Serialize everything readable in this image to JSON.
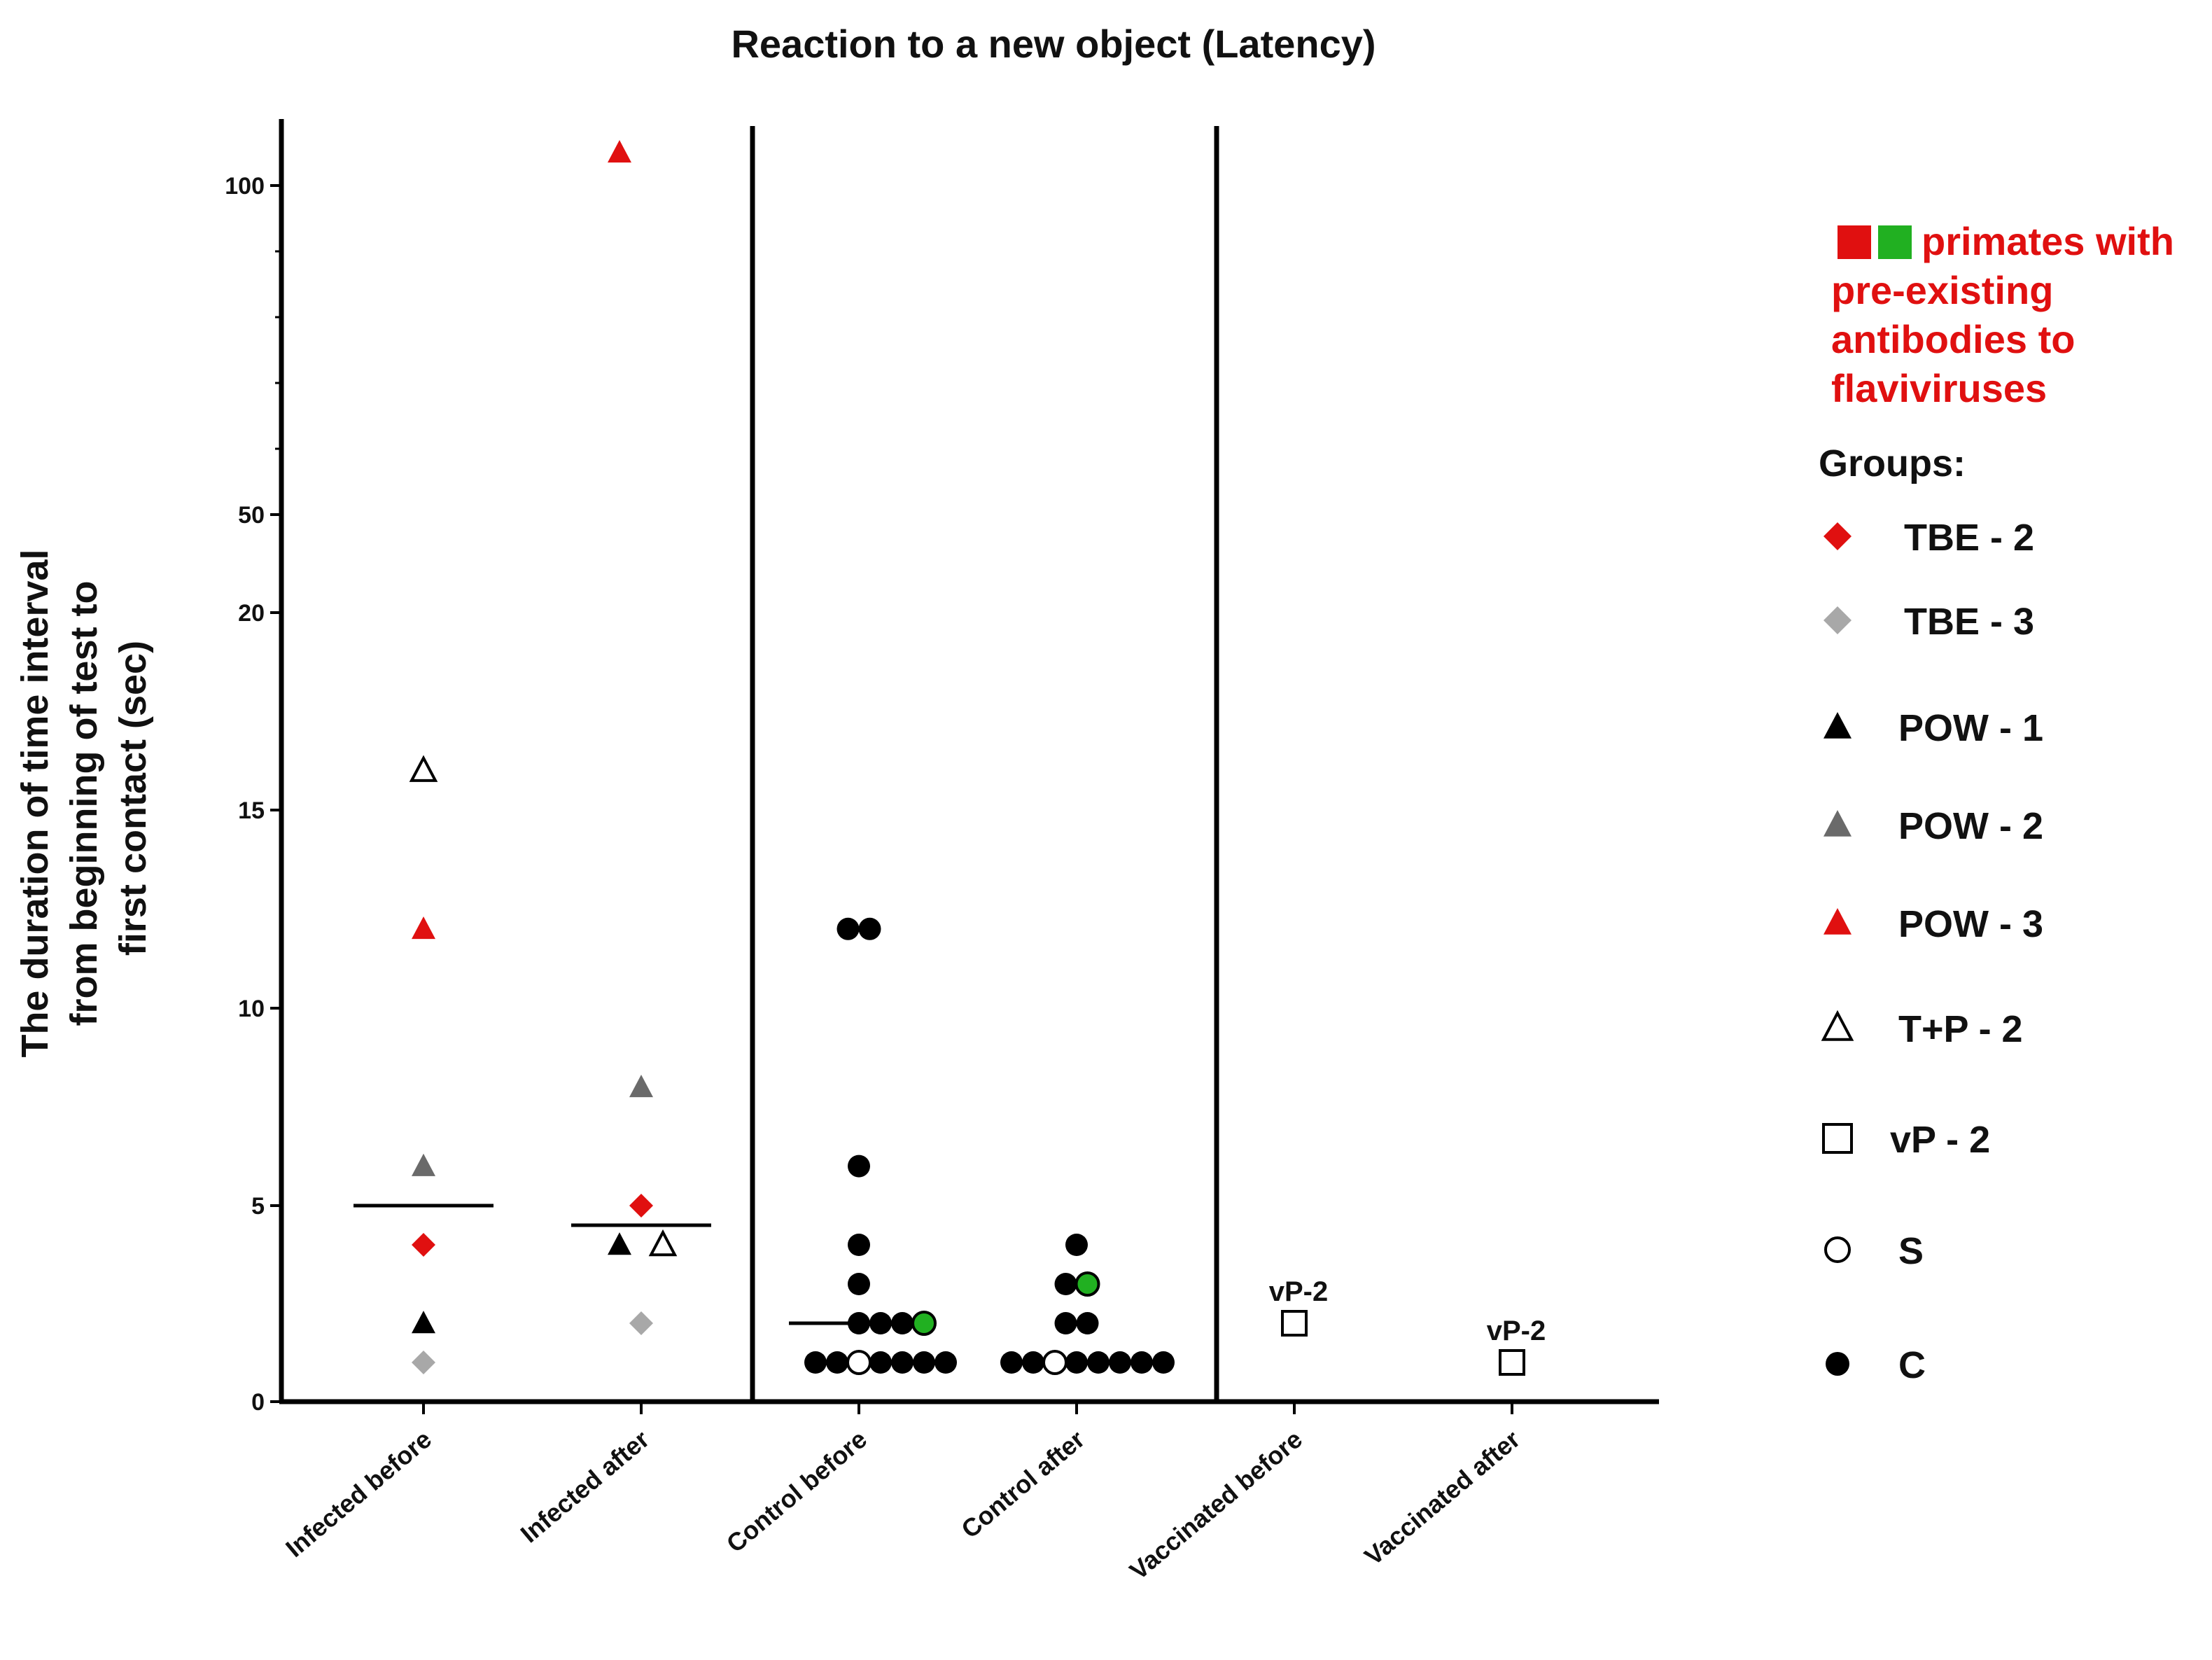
{
  "chart_data": {
    "type": "scatter",
    "title": "Reaction to a new object (Latency)",
    "ylabel_lines": [
      "The duration of time interval",
      "from beginning of test to",
      "first contact (sec)"
    ],
    "xlabel": "",
    "y_axis": {
      "scale": "segmented",
      "ticks": [
        {
          "value": 0,
          "label": "0"
        },
        {
          "value": 5,
          "label": "5"
        },
        {
          "value": 10,
          "label": "10"
        },
        {
          "value": 15,
          "label": "15"
        },
        {
          "value": 20,
          "label": "20"
        },
        {
          "value": 50,
          "label": "50"
        },
        {
          "value": 100,
          "label": "100"
        }
      ],
      "max": 107
    },
    "categories": [
      "Infected before",
      "Infected after",
      "Control before",
      "Control after",
      "Vaccinated before",
      "Vaccinated after"
    ],
    "separators_after": [
      1,
      3
    ],
    "medians": [
      {
        "category": 0,
        "value": 5
      },
      {
        "category": 1,
        "value": 4.5
      },
      {
        "category": 2,
        "value": 2
      },
      {
        "category": 3,
        "value": 1
      }
    ],
    "points": [
      {
        "category": 0,
        "group": "TBE - 3",
        "value": 1,
        "offset": 0
      },
      {
        "category": 0,
        "group": "POW - 1",
        "value": 2,
        "offset": 0
      },
      {
        "category": 0,
        "group": "TBE - 2",
        "value": 4,
        "offset": 0
      },
      {
        "category": 0,
        "group": "POW - 2",
        "value": 6,
        "offset": 0
      },
      {
        "category": 0,
        "group": "POW - 3",
        "value": 12,
        "offset": 0
      },
      {
        "category": 0,
        "group": "T+P - 2",
        "value": 16,
        "offset": 0
      },
      {
        "category": 1,
        "group": "TBE - 3",
        "value": 2,
        "offset": 0
      },
      {
        "category": 1,
        "group": "POW - 1",
        "value": 4,
        "offset": -1
      },
      {
        "category": 1,
        "group": "T+P - 2",
        "value": 4,
        "offset": 1
      },
      {
        "category": 1,
        "group": "TBE - 2",
        "value": 5,
        "offset": 0
      },
      {
        "category": 1,
        "group": "POW - 2",
        "value": 8,
        "offset": 0
      },
      {
        "category": 1,
        "group": "POW - 3",
        "value": 105,
        "offset": -1
      },
      {
        "category": 2,
        "group": "C",
        "value": 1,
        "offset": -2
      },
      {
        "category": 2,
        "group": "C",
        "value": 1,
        "offset": -1
      },
      {
        "category": 2,
        "group": "S",
        "value": 1,
        "offset": 0
      },
      {
        "category": 2,
        "group": "C",
        "value": 1,
        "offset": 1
      },
      {
        "category": 2,
        "group": "C",
        "value": 1,
        "offset": 2
      },
      {
        "category": 2,
        "group": "C",
        "value": 1,
        "offset": 3
      },
      {
        "category": 2,
        "group": "C",
        "value": 1,
        "offset": 4
      },
      {
        "category": 2,
        "group": "C",
        "value": 2,
        "offset": 0
      },
      {
        "category": 2,
        "group": "C",
        "value": 2,
        "offset": 1
      },
      {
        "category": 2,
        "group": "C",
        "value": 2,
        "offset": 2
      },
      {
        "category": 2,
        "group": "C",
        "value": 2,
        "offset": 3,
        "antibodies": "green"
      },
      {
        "category": 2,
        "group": "C",
        "value": 3,
        "offset": 0
      },
      {
        "category": 2,
        "group": "C",
        "value": 4,
        "offset": 0
      },
      {
        "category": 2,
        "group": "C",
        "value": 6,
        "offset": 0
      },
      {
        "category": 2,
        "group": "C",
        "value": 12,
        "offset": -0.5
      },
      {
        "category": 2,
        "group": "C",
        "value": 12,
        "offset": 0.5
      },
      {
        "category": 3,
        "group": "C",
        "value": 1,
        "offset": -3
      },
      {
        "category": 3,
        "group": "C",
        "value": 1,
        "offset": -2
      },
      {
        "category": 3,
        "group": "S",
        "value": 1,
        "offset": -1
      },
      {
        "category": 3,
        "group": "C",
        "value": 1,
        "offset": 0
      },
      {
        "category": 3,
        "group": "C",
        "value": 1,
        "offset": 1
      },
      {
        "category": 3,
        "group": "C",
        "value": 1,
        "offset": 2
      },
      {
        "category": 3,
        "group": "C",
        "value": 1,
        "offset": 3
      },
      {
        "category": 3,
        "group": "C",
        "value": 1,
        "offset": 4
      },
      {
        "category": 3,
        "group": "C",
        "value": 2,
        "offset": -0.5
      },
      {
        "category": 3,
        "group": "C",
        "value": 2,
        "offset": 0.5
      },
      {
        "category": 3,
        "group": "C",
        "value": 3,
        "offset": -0.5
      },
      {
        "category": 3,
        "group": "C",
        "value": 3,
        "offset": 0.5,
        "antibodies": "green"
      },
      {
        "category": 3,
        "group": "C",
        "value": 4,
        "offset": 0
      },
      {
        "category": 4,
        "group": "vP - 2",
        "value": 2,
        "offset": 0,
        "label": "vP-2"
      },
      {
        "category": 5,
        "group": "vP - 2",
        "value": 1,
        "offset": 0,
        "label": "vP-2"
      }
    ],
    "antibody_note": [
      "primates with",
      "pre-existing",
      "antibodies to",
      "flaviviruses"
    ],
    "legend_title": "Groups:",
    "legend": [
      {
        "label": "TBE - 2",
        "shape": "diamond",
        "color": "#e01010"
      },
      {
        "label": "TBE - 3",
        "shape": "diamond",
        "color": "#a8a8a8"
      },
      {
        "label": "POW - 1",
        "shape": "triangle",
        "color": "#000000"
      },
      {
        "label": "POW - 2",
        "shape": "triangle",
        "color": "#6a6a6a"
      },
      {
        "label": "POW - 3",
        "shape": "triangle",
        "color": "#e01010"
      },
      {
        "label": "T+P - 2",
        "shape": "triangle-open",
        "color": "#000000"
      },
      {
        "label": "vP - 2",
        "shape": "square-open",
        "color": "#000000"
      },
      {
        "label": "S",
        "shape": "circle-open",
        "color": "#000000"
      },
      {
        "label": "C",
        "shape": "circle",
        "color": "#000000"
      }
    ],
    "antibody_colors": {
      "red": "#e01010",
      "green": "#21b021"
    }
  }
}
